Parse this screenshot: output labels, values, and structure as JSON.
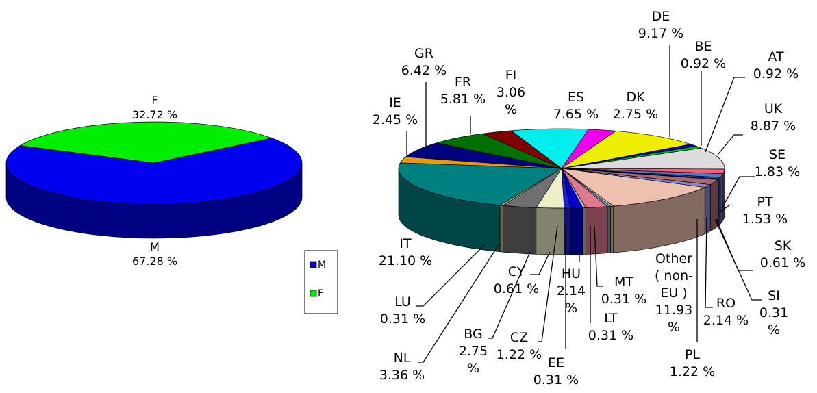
{
  "chart_data": [
    {
      "type": "pie",
      "style": "3d",
      "categories": [
        "F",
        "M"
      ],
      "values": [
        32.72,
        67.28
      ],
      "value_labels": [
        "32.72 %",
        "67.28 %"
      ],
      "colors": [
        "#00ee00",
        "#0000ee"
      ],
      "legend": {
        "placement": "right",
        "entries": [
          {
            "label": "M",
            "color": "#0000ee"
          },
          {
            "label": "F",
            "color": "#00ee00"
          }
        ]
      }
    },
    {
      "type": "pie",
      "style": "3d",
      "categories": [
        "ES",
        "DK",
        "DE",
        "BE",
        "AT",
        "UK",
        "SE",
        "PT",
        "SK",
        "SI",
        "RO",
        "PL",
        "Other ( non- EU )",
        "MT",
        "LT",
        "HU",
        "EE",
        "CZ",
        "CY",
        "BG",
        "NL",
        "LU",
        "IT",
        "IE",
        "GR",
        "FR",
        "FI"
      ],
      "category_lines": [
        [
          "ES"
        ],
        [
          "DK"
        ],
        [
          "DE"
        ],
        [
          "BE"
        ],
        [
          "AT"
        ],
        [
          "UK"
        ],
        [
          "SE"
        ],
        [
          "PT"
        ],
        [
          "SK"
        ],
        [
          "SI"
        ],
        [
          "RO"
        ],
        [
          "PL"
        ],
        [
          "Other",
          "( non-",
          "EU )"
        ],
        [
          "MT"
        ],
        [
          "LT"
        ],
        [
          "HU"
        ],
        [
          "EE"
        ],
        [
          "CZ"
        ],
        [
          "CY"
        ],
        [
          "BG"
        ],
        [
          "NL"
        ],
        [
          "LU"
        ],
        [
          "IT"
        ],
        [
          "IE"
        ],
        [
          "GR"
        ],
        [
          "FR"
        ],
        [
          "FI"
        ]
      ],
      "values": [
        7.65,
        2.75,
        9.17,
        0.92,
        0.92,
        8.87,
        1.83,
        1.53,
        0.61,
        0.31,
        2.14,
        1.22,
        11.93,
        0.31,
        0.31,
        2.14,
        0.31,
        1.22,
        0.61,
        2.75,
        3.36,
        0.31,
        21.1,
        2.45,
        6.42,
        5.81,
        3.06
      ],
      "value_labels": [
        "7.65 %",
        "2.75 %",
        "9.17 %",
        "0.92 %",
        "0.92 %",
        "8.87 %",
        "1.83 %",
        "1.53 %",
        "0.61 %",
        "0.31 %",
        "2.14 %",
        "1.22 %",
        "11.93 %",
        "0.31 %",
        "0.31 %",
        "2.14 %",
        "0.31 %",
        "1.22 %",
        "0.61 %",
        "2.75 %",
        "3.36 %",
        "0.31 %",
        "21.10 %",
        "2.45 %",
        "6.42 %",
        "5.81 %",
        "3.06 %"
      ],
      "value_label_lines": [
        [
          "7.65 %"
        ],
        [
          "2.75 %"
        ],
        [
          "9.17 %"
        ],
        [
          "0.92 %"
        ],
        [
          "0.92 %"
        ],
        [
          "8.87 %"
        ],
        [
          "1.83 %"
        ],
        [
          "1.53 %"
        ],
        [
          "0.61 %"
        ],
        [
          "0.31",
          "%"
        ],
        [
          "2.14 %"
        ],
        [
          "1.22 %"
        ],
        [
          "11.93",
          "%"
        ],
        [
          "0.31 %"
        ],
        [
          "0.31 %"
        ],
        [
          "2.14",
          "%"
        ],
        [
          "0.31 %"
        ],
        [
          "1.22 %"
        ],
        [
          "0.61 %"
        ],
        [
          "2.75",
          "%"
        ],
        [
          "3.36 %"
        ],
        [
          "0.31 %"
        ],
        [
          "21.10 %"
        ],
        [
          "2.45 %"
        ],
        [
          "6.42 %"
        ],
        [
          "5.81 %"
        ],
        [
          "3.06",
          "%"
        ]
      ],
      "colors": [
        "#00eeee",
        "#ee00ee",
        "#eeee00",
        "#0000c8",
        "#00bb00",
        "#dcdcdc",
        "#f06078",
        "#5878c8",
        "#3a3aaa",
        "#20a0a0",
        "#a86870",
        "#8888c8",
        "#eec0b0",
        "#c8c8a0",
        "#8098c8",
        "#e07890",
        "#b8b8b8",
        "#0000cc",
        "#2020d0",
        "#eeeec8",
        "#707070",
        "#bbbb80",
        "#008080",
        "#ee9900",
        "#000080",
        "#007000",
        "#800000"
      ]
    }
  ]
}
